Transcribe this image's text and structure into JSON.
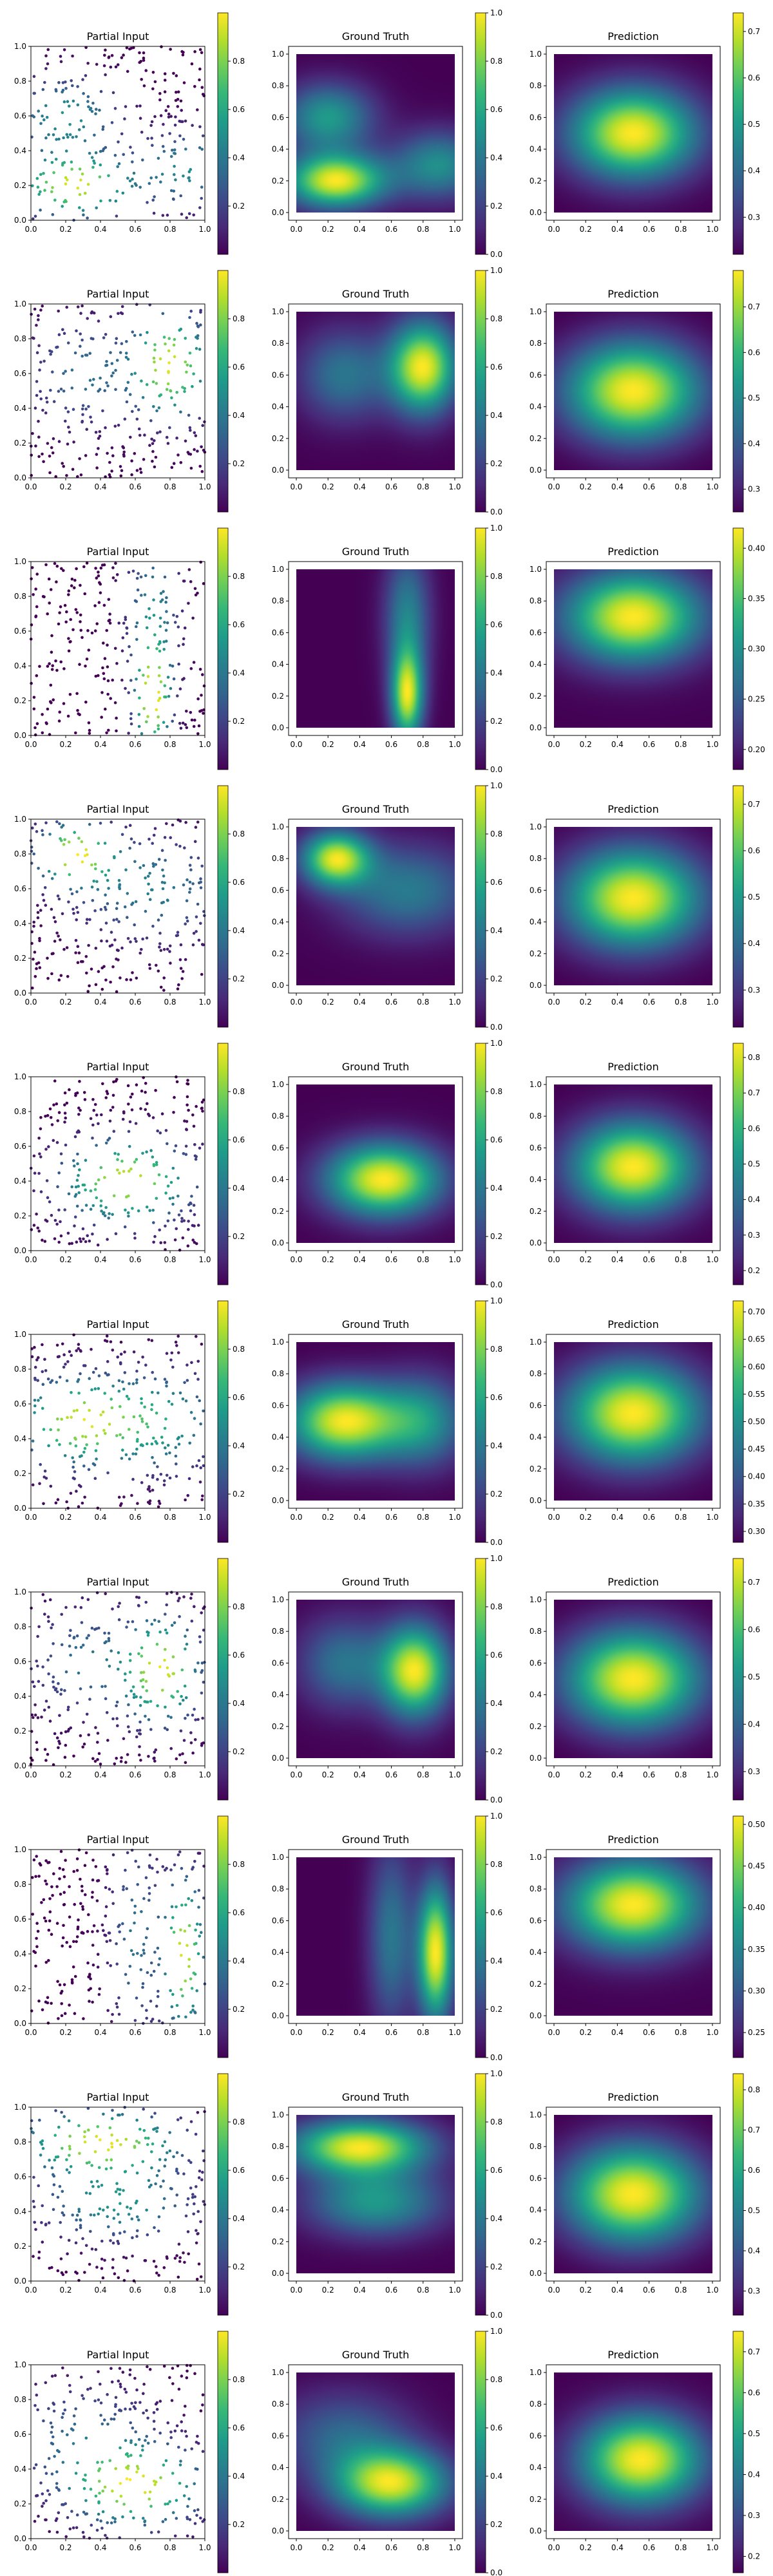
{
  "chart_data": {
    "type": "heatmap",
    "panel_titles": [
      "Partial Input",
      "Ground Truth",
      "Prediction"
    ],
    "xlim": [
      0,
      1
    ],
    "ylim": [
      0,
      1
    ],
    "axis_ticks": [
      "0.0",
      "0.2",
      "0.4",
      "0.6",
      "0.8",
      "1.0"
    ],
    "colormap": "viridis",
    "colormap_stops": [
      "#440154",
      "#482878",
      "#3e4989",
      "#31688e",
      "#26828e",
      "#1f9e89",
      "#35b779",
      "#6ece58",
      "#b5de2b",
      "#fde725"
    ],
    "rows": [
      {
        "partial": {
          "field": [
            {
              "cx": 0.25,
              "cy": 0.2,
              "sx": 0.22,
              "sy": 0.12,
              "a": 1.0
            },
            {
              "cx": 0.9,
              "cy": 0.3,
              "sx": 0.2,
              "sy": 0.15,
              "a": 0.5
            },
            {
              "cx": 0.2,
              "cy": 0.6,
              "sx": 0.2,
              "sy": 0.15,
              "a": 0.55
            }
          ],
          "cticks": [
            0.2,
            0.4,
            0.6,
            0.8
          ],
          "crange": [
            0,
            1
          ]
        },
        "ground_truth": {
          "field": [
            {
              "cx": 0.25,
              "cy": 0.2,
              "sx": 0.22,
              "sy": 0.12,
              "a": 1.0
            },
            {
              "cx": 0.9,
              "cy": 0.3,
              "sx": 0.2,
              "sy": 0.15,
              "a": 0.5
            },
            {
              "cx": 0.2,
              "cy": 0.6,
              "sx": 0.2,
              "sy": 0.15,
              "a": 0.55
            }
          ],
          "cticks": [
            0.0,
            0.2,
            0.4,
            0.6,
            0.8,
            1.0
          ],
          "crange": [
            0,
            1
          ]
        },
        "prediction": {
          "field": [
            {
              "cx": 0.5,
              "cy": 0.5,
              "sx": 0.28,
              "sy": 0.2,
              "a": 1.0
            }
          ],
          "cticks": [
            0.3,
            0.4,
            0.5,
            0.6,
            0.7
          ],
          "crange": [
            0.22,
            0.74
          ]
        }
      },
      {
        "partial": {
          "field": [
            {
              "cx": 0.8,
              "cy": 0.65,
              "sx": 0.15,
              "sy": 0.2,
              "a": 1.0
            },
            {
              "cx": 0.3,
              "cy": 0.6,
              "sx": 0.2,
              "sy": 0.2,
              "a": 0.4
            }
          ],
          "cticks": [
            0.2,
            0.4,
            0.6,
            0.8
          ],
          "crange": [
            0,
            1
          ]
        },
        "ground_truth": {
          "field": [
            {
              "cx": 0.8,
              "cy": 0.65,
              "sx": 0.15,
              "sy": 0.2,
              "a": 1.0
            },
            {
              "cx": 0.3,
              "cy": 0.6,
              "sx": 0.2,
              "sy": 0.2,
              "a": 0.4
            }
          ],
          "cticks": [
            0.0,
            0.2,
            0.4,
            0.6,
            0.8,
            1.0
          ],
          "crange": [
            0,
            1
          ]
        },
        "prediction": {
          "field": [
            {
              "cx": 0.5,
              "cy": 0.5,
              "sx": 0.3,
              "sy": 0.22,
              "a": 1.0
            }
          ],
          "cticks": [
            0.3,
            0.4,
            0.5,
            0.6,
            0.7
          ],
          "crange": [
            0.25,
            0.78
          ]
        }
      },
      {
        "partial": {
          "field": [
            {
              "cx": 0.7,
              "cy": 0.2,
              "sx": 0.07,
              "sy": 0.2,
              "a": 1.0
            },
            {
              "cx": 0.7,
              "cy": 0.7,
              "sx": 0.1,
              "sy": 0.3,
              "a": 0.5
            }
          ],
          "cticks": [
            0.2,
            0.4,
            0.6,
            0.8
          ],
          "crange": [
            0,
            1
          ]
        },
        "ground_truth": {
          "field": [
            {
              "cx": 0.7,
              "cy": 0.2,
              "sx": 0.07,
              "sy": 0.2,
              "a": 1.0
            },
            {
              "cx": 0.7,
              "cy": 0.7,
              "sx": 0.1,
              "sy": 0.3,
              "a": 0.5
            }
          ],
          "cticks": [
            0.0,
            0.2,
            0.4,
            0.6,
            0.8,
            1.0
          ],
          "crange": [
            0,
            1
          ]
        },
        "prediction": {
          "field": [
            {
              "cx": 0.5,
              "cy": 0.7,
              "sx": 0.3,
              "sy": 0.2,
              "a": 1.0
            }
          ],
          "cticks": [
            0.2,
            0.25,
            0.3,
            0.35,
            0.4
          ],
          "crange": [
            0.18,
            0.42
          ]
        }
      },
      {
        "partial": {
          "field": [
            {
              "cx": 0.25,
              "cy": 0.8,
              "sx": 0.15,
              "sy": 0.12,
              "a": 1.0
            },
            {
              "cx": 0.7,
              "cy": 0.6,
              "sx": 0.3,
              "sy": 0.2,
              "a": 0.45
            }
          ],
          "cticks": [
            0.2,
            0.4,
            0.6,
            0.8
          ],
          "crange": [
            0,
            1
          ]
        },
        "ground_truth": {
          "field": [
            {
              "cx": 0.25,
              "cy": 0.8,
              "sx": 0.15,
              "sy": 0.12,
              "a": 1.0
            },
            {
              "cx": 0.7,
              "cy": 0.6,
              "sx": 0.3,
              "sy": 0.2,
              "a": 0.45
            }
          ],
          "cticks": [
            0.0,
            0.2,
            0.4,
            0.6,
            0.8,
            1.0
          ],
          "crange": [
            0,
            1
          ]
        },
        "prediction": {
          "field": [
            {
              "cx": 0.5,
              "cy": 0.55,
              "sx": 0.3,
              "sy": 0.22,
              "a": 1.0
            }
          ],
          "cticks": [
            0.3,
            0.4,
            0.5,
            0.6,
            0.7
          ],
          "crange": [
            0.22,
            0.74
          ]
        }
      },
      {
        "partial": {
          "field": [
            {
              "cx": 0.55,
              "cy": 0.4,
              "sx": 0.25,
              "sy": 0.16,
              "a": 1.0
            }
          ],
          "cticks": [
            0.2,
            0.4,
            0.6,
            0.8
          ],
          "crange": [
            0,
            1
          ]
        },
        "ground_truth": {
          "field": [
            {
              "cx": 0.55,
              "cy": 0.4,
              "sx": 0.25,
              "sy": 0.16,
              "a": 1.0
            }
          ],
          "cticks": [
            0.0,
            0.2,
            0.4,
            0.6,
            0.8,
            1.0
          ],
          "crange": [
            0,
            1
          ]
        },
        "prediction": {
          "field": [
            {
              "cx": 0.5,
              "cy": 0.48,
              "sx": 0.27,
              "sy": 0.2,
              "a": 1.0
            }
          ],
          "cticks": [
            0.2,
            0.3,
            0.4,
            0.5,
            0.6,
            0.7,
            0.8
          ],
          "crange": [
            0.16,
            0.84
          ]
        }
      },
      {
        "partial": {
          "field": [
            {
              "cx": 0.3,
              "cy": 0.5,
              "sx": 0.25,
              "sy": 0.17,
              "a": 1.0
            },
            {
              "cx": 0.8,
              "cy": 0.5,
              "sx": 0.2,
              "sy": 0.2,
              "a": 0.5
            }
          ],
          "cticks": [
            0.2,
            0.4,
            0.6,
            0.8
          ],
          "crange": [
            0,
            1
          ]
        },
        "ground_truth": {
          "field": [
            {
              "cx": 0.3,
              "cy": 0.5,
              "sx": 0.25,
              "sy": 0.17,
              "a": 1.0
            },
            {
              "cx": 0.8,
              "cy": 0.5,
              "sx": 0.2,
              "sy": 0.2,
              "a": 0.5
            }
          ],
          "cticks": [
            0.0,
            0.2,
            0.4,
            0.6,
            0.8,
            1.0
          ],
          "crange": [
            0,
            1
          ]
        },
        "prediction": {
          "field": [
            {
              "cx": 0.5,
              "cy": 0.55,
              "sx": 0.3,
              "sy": 0.22,
              "a": 1.0
            }
          ],
          "cticks": [
            0.3,
            0.35,
            0.4,
            0.45,
            0.5,
            0.55,
            0.6,
            0.65,
            0.7
          ],
          "crange": [
            0.28,
            0.72
          ]
        }
      },
      {
        "partial": {
          "field": [
            {
              "cx": 0.75,
              "cy": 0.55,
              "sx": 0.15,
              "sy": 0.2,
              "a": 1.0
            },
            {
              "cx": 0.3,
              "cy": 0.6,
              "sx": 0.2,
              "sy": 0.2,
              "a": 0.4
            }
          ],
          "cticks": [
            0.2,
            0.4,
            0.6,
            0.8
          ],
          "crange": [
            0,
            1
          ]
        },
        "ground_truth": {
          "field": [
            {
              "cx": 0.75,
              "cy": 0.55,
              "sx": 0.15,
              "sy": 0.2,
              "a": 1.0
            },
            {
              "cx": 0.3,
              "cy": 0.6,
              "sx": 0.2,
              "sy": 0.2,
              "a": 0.4
            }
          ],
          "cticks": [
            0.0,
            0.2,
            0.4,
            0.6,
            0.8,
            1.0
          ],
          "crange": [
            0,
            1
          ]
        },
        "prediction": {
          "field": [
            {
              "cx": 0.5,
              "cy": 0.5,
              "sx": 0.3,
              "sy": 0.22,
              "a": 1.0
            }
          ],
          "cticks": [
            0.3,
            0.4,
            0.5,
            0.6,
            0.7
          ],
          "crange": [
            0.24,
            0.75
          ]
        }
      },
      {
        "partial": {
          "field": [
            {
              "cx": 0.88,
              "cy": 0.4,
              "sx": 0.08,
              "sy": 0.3,
              "a": 1.0
            },
            {
              "cx": 0.6,
              "cy": 0.5,
              "sx": 0.1,
              "sy": 0.4,
              "a": 0.4
            }
          ],
          "cticks": [
            0.2,
            0.4,
            0.6,
            0.8
          ],
          "crange": [
            0,
            1
          ]
        },
        "ground_truth": {
          "field": [
            {
              "cx": 0.88,
              "cy": 0.4,
              "sx": 0.08,
              "sy": 0.3,
              "a": 1.0
            },
            {
              "cx": 0.6,
              "cy": 0.5,
              "sx": 0.1,
              "sy": 0.4,
              "a": 0.4
            }
          ],
          "cticks": [
            0.0,
            0.2,
            0.4,
            0.6,
            0.8,
            1.0
          ],
          "crange": [
            0,
            1
          ]
        },
        "prediction": {
          "field": [
            {
              "cx": 0.5,
              "cy": 0.7,
              "sx": 0.3,
              "sy": 0.2,
              "a": 1.0
            }
          ],
          "cticks": [
            0.25,
            0.3,
            0.35,
            0.4,
            0.45,
            0.5
          ],
          "crange": [
            0.22,
            0.51
          ]
        }
      },
      {
        "partial": {
          "field": [
            {
              "cx": 0.4,
              "cy": 0.8,
              "sx": 0.3,
              "sy": 0.12,
              "a": 1.0
            },
            {
              "cx": 0.5,
              "cy": 0.45,
              "sx": 0.3,
              "sy": 0.15,
              "a": 0.55
            }
          ],
          "cticks": [
            0.2,
            0.4,
            0.6,
            0.8
          ],
          "crange": [
            0,
            1
          ]
        },
        "ground_truth": {
          "field": [
            {
              "cx": 0.4,
              "cy": 0.8,
              "sx": 0.3,
              "sy": 0.12,
              "a": 1.0
            },
            {
              "cx": 0.5,
              "cy": 0.45,
              "sx": 0.3,
              "sy": 0.15,
              "a": 0.55
            }
          ],
          "cticks": [
            0.0,
            0.2,
            0.4,
            0.6,
            0.8,
            1.0
          ],
          "crange": [
            0,
            1
          ]
        },
        "prediction": {
          "field": [
            {
              "cx": 0.5,
              "cy": 0.5,
              "sx": 0.3,
              "sy": 0.22,
              "a": 1.0
            }
          ],
          "cticks": [
            0.3,
            0.4,
            0.5,
            0.6,
            0.7,
            0.8
          ],
          "crange": [
            0.24,
            0.84
          ]
        }
      },
      {
        "partial": {
          "field": [
            {
              "cx": 0.6,
              "cy": 0.3,
              "sx": 0.25,
              "sy": 0.15,
              "a": 1.0
            },
            {
              "cx": 0.3,
              "cy": 0.6,
              "sx": 0.3,
              "sy": 0.2,
              "a": 0.35
            }
          ],
          "cticks": [
            0.2,
            0.4,
            0.6,
            0.8
          ],
          "crange": [
            0,
            1
          ]
        },
        "ground_truth": {
          "field": [
            {
              "cx": 0.6,
              "cy": 0.3,
              "sx": 0.25,
              "sy": 0.15,
              "a": 1.0
            },
            {
              "cx": 0.3,
              "cy": 0.6,
              "sx": 0.3,
              "sy": 0.2,
              "a": 0.35
            }
          ],
          "cticks": [
            0.0,
            0.2,
            0.4,
            0.6,
            0.8,
            1.0
          ],
          "crange": [
            0,
            1
          ]
        },
        "prediction": {
          "field": [
            {
              "cx": 0.55,
              "cy": 0.45,
              "sx": 0.27,
              "sy": 0.2,
              "a": 1.0
            }
          ],
          "cticks": [
            0.2,
            0.3,
            0.4,
            0.5,
            0.6,
            0.7
          ],
          "crange": [
            0.16,
            0.75
          ]
        }
      }
    ]
  }
}
